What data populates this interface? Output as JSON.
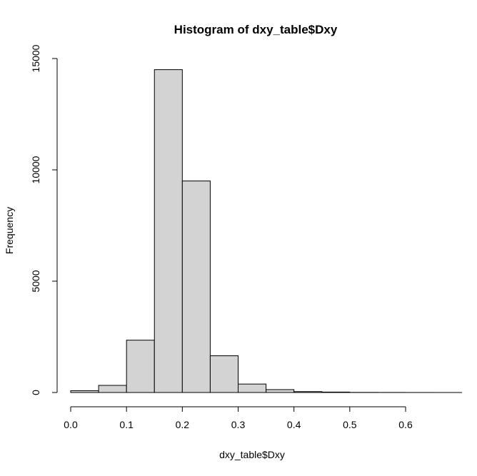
{
  "chart_data": {
    "type": "bar",
    "title": "Histogram of dxy_table$Dxy",
    "xlabel": "dxy_table$Dxy",
    "ylabel": "Frequency",
    "bins": [
      {
        "start": 0.0,
        "end": 0.05,
        "count": 80
      },
      {
        "start": 0.05,
        "end": 0.1,
        "count": 320
      },
      {
        "start": 0.1,
        "end": 0.15,
        "count": 2350
      },
      {
        "start": 0.15,
        "end": 0.2,
        "count": 14500
      },
      {
        "start": 0.2,
        "end": 0.25,
        "count": 9500
      },
      {
        "start": 0.25,
        "end": 0.3,
        "count": 1650
      },
      {
        "start": 0.3,
        "end": 0.35,
        "count": 380
      },
      {
        "start": 0.35,
        "end": 0.4,
        "count": 130
      },
      {
        "start": 0.4,
        "end": 0.45,
        "count": 40
      },
      {
        "start": 0.45,
        "end": 0.5,
        "count": 20
      },
      {
        "start": 0.5,
        "end": 0.55,
        "count": 5
      },
      {
        "start": 0.55,
        "end": 0.6,
        "count": 3
      },
      {
        "start": 0.6,
        "end": 0.65,
        "count": 1
      }
    ],
    "xticks": [
      0.0,
      0.1,
      0.2,
      0.3,
      0.4,
      0.5,
      0.6
    ],
    "xtick_labels": [
      "0.0",
      "0.1",
      "0.2",
      "0.3",
      "0.4",
      "0.5",
      "0.6"
    ],
    "yticks": [
      0,
      5000,
      10000,
      15000
    ],
    "ytick_labels": [
      "0",
      "5000",
      "10000",
      "15000"
    ],
    "xlim": [
      0.0,
      0.65
    ],
    "ylim": [
      0,
      15000
    ],
    "grid": false,
    "bar_color": "#d3d3d3",
    "edge_color": "#000000"
  }
}
